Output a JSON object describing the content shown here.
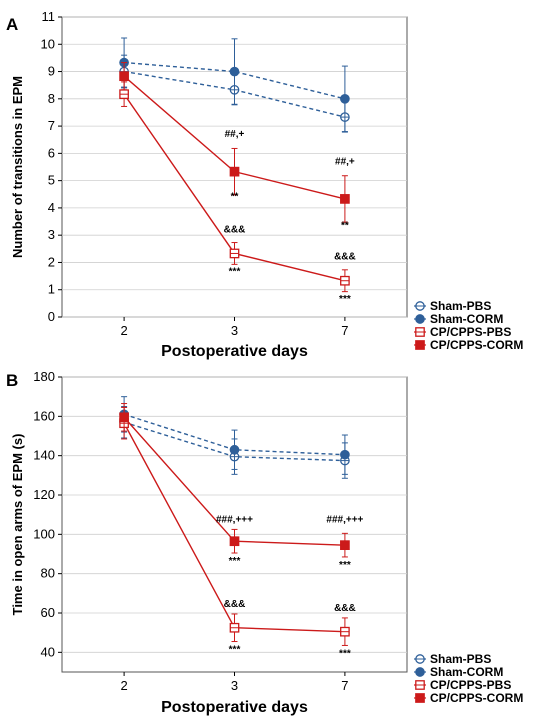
{
  "colors": {
    "sham": "#2e5f99",
    "cp": "#cc1a1a"
  },
  "chart_data": [
    {
      "panel_label": "A",
      "type": "line",
      "ylabel": "Number of transitions in EPM",
      "xlabel": "Postoperative days",
      "categories": [
        "2",
        "3",
        "7"
      ],
      "ylim": [
        0,
        11
      ],
      "yticks": [
        0,
        1,
        2,
        3,
        4,
        5,
        6,
        7,
        8,
        9,
        10,
        11
      ],
      "grid": true,
      "legend_position": "bottom-right-outside",
      "series": [
        {
          "name": "Sham-PBS",
          "color": "sham",
          "marker": "open-circle",
          "dash": true,
          "values": [
            9.0,
            8.33,
            7.33
          ],
          "err": [
            0.6,
            0.55,
            0.55
          ]
        },
        {
          "name": "Sham-CORM",
          "color": "sham",
          "marker": "filled-circle",
          "dash": true,
          "values": [
            9.33,
            9.0,
            8.0
          ],
          "err": [
            0.9,
            1.2,
            1.2
          ]
        },
        {
          "name": "CP/CPPS-PBS",
          "color": "cp",
          "marker": "open-square",
          "dash": false,
          "values": [
            8.17,
            2.33,
            1.33
          ],
          "err": [
            0.45,
            0.4,
            0.4
          ]
        },
        {
          "name": "CP/CPPS-CORM",
          "color": "cp",
          "marker": "filled-square",
          "dash": false,
          "values": [
            8.83,
            5.33,
            4.33
          ],
          "err": [
            0.5,
            0.85,
            0.85
          ]
        }
      ],
      "annotations": [
        {
          "text": "##,+",
          "xi": 1,
          "y": 6.6
        },
        {
          "text": "**",
          "xi": 1,
          "y": 4.3
        },
        {
          "text": "&&&",
          "xi": 1,
          "y": 3.1
        },
        {
          "text": "***",
          "xi": 1,
          "y": 1.55
        },
        {
          "text": "##,+",
          "xi": 2,
          "y": 5.6
        },
        {
          "text": "**",
          "xi": 2,
          "y": 3.25
        },
        {
          "text": "&&&",
          "xi": 2,
          "y": 2.1
        },
        {
          "text": "***",
          "xi": 2,
          "y": 0.55
        }
      ]
    },
    {
      "panel_label": "B",
      "type": "line",
      "ylabel": "Time in open arms of EPM (s)",
      "xlabel": "Postoperative days",
      "categories": [
        "2",
        "3",
        "7"
      ],
      "ylim": [
        30,
        180
      ],
      "yticks": [
        40,
        60,
        80,
        100,
        120,
        140,
        160,
        180
      ],
      "grid": true,
      "legend_position": "bottom-right-outside",
      "series": [
        {
          "name": "Sham-PBS",
          "color": "sham",
          "marker": "open-circle",
          "dash": true,
          "values": [
            157,
            139.5,
            137.5
          ],
          "err": [
            8,
            9,
            9
          ]
        },
        {
          "name": "Sham-CORM",
          "color": "sham",
          "marker": "filled-circle",
          "dash": true,
          "values": [
            161,
            143,
            140.5
          ],
          "err": [
            9,
            10,
            10
          ]
        },
        {
          "name": "CP/CPPS-PBS",
          "color": "cp",
          "marker": "open-square",
          "dash": false,
          "values": [
            156.5,
            52.5,
            50.5
          ],
          "err": [
            8,
            7,
            7
          ]
        },
        {
          "name": "CP/CPPS-CORM",
          "color": "cp",
          "marker": "filled-square",
          "dash": false,
          "values": [
            159.5,
            96.5,
            94.5
          ],
          "err": [
            7,
            6,
            6
          ]
        }
      ],
      "annotations": [
        {
          "text": "###,+++",
          "xi": 1,
          "y": 106
        },
        {
          "text": "***",
          "xi": 1,
          "y": 85
        },
        {
          "text": "&&&",
          "xi": 1,
          "y": 63
        },
        {
          "text": "***",
          "xi": 1,
          "y": 40
        },
        {
          "text": "###,+++",
          "xi": 2,
          "y": 106
        },
        {
          "text": "***",
          "xi": 2,
          "y": 83
        },
        {
          "text": "&&&",
          "xi": 2,
          "y": 61
        },
        {
          "text": "***",
          "xi": 2,
          "y": 38
        }
      ]
    }
  ]
}
